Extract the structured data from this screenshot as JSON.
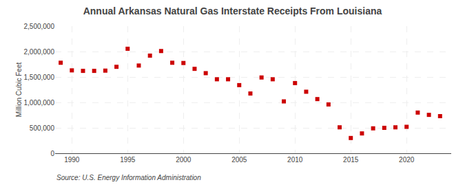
{
  "chart_data": {
    "type": "scatter",
    "title": "Annual Arkansas Natural Gas Interstate Receipts From Louisiana",
    "y_label": "Million Cubic Feet",
    "annotations": [
      "Source: U.S. Energy Information Administration"
    ],
    "x": [
      1989,
      1990,
      1991,
      1992,
      1993,
      1994,
      1995,
      1996,
      1997,
      1998,
      1999,
      2000,
      2001,
      2002,
      2003,
      2004,
      2005,
      2006,
      2007,
      2008,
      2009,
      2010,
      2011,
      2012,
      2013,
      2014,
      2015,
      2016,
      2017,
      2018,
      2019,
      2020,
      2021,
      2022,
      2023
    ],
    "values": [
      1780000,
      1630000,
      1620000,
      1620000,
      1625000,
      1700000,
      2055000,
      1725000,
      1920000,
      2010000,
      1780000,
      1775000,
      1660000,
      1575000,
      1455000,
      1455000,
      1340000,
      1175000,
      1490000,
      1455000,
      1020000,
      1380000,
      1210000,
      1065000,
      960000,
      510000,
      300000,
      390000,
      490000,
      500000,
      510000,
      520000,
      800000,
      755000,
      730000
    ],
    "color": "#CC0000",
    "marker": "square",
    "xlim": [
      1988.5,
      2024
    ],
    "xticks": [
      1990,
      1995,
      2000,
      2005,
      2010,
      2015,
      2020
    ],
    "ylim": [
      0,
      2500000
    ],
    "yticks": [
      0,
      {
        "value": 500000,
        "label": "500,000"
      },
      {
        "value": 1000000,
        "label": "1,000,000"
      },
      {
        "value": 1500000,
        "label": "1,500,000"
      },
      {
        "value": 2000000,
        "label": "2,000,000"
      },
      {
        "value": 2500000,
        "label": "2,500,000"
      }
    ],
    "grid": true
  }
}
